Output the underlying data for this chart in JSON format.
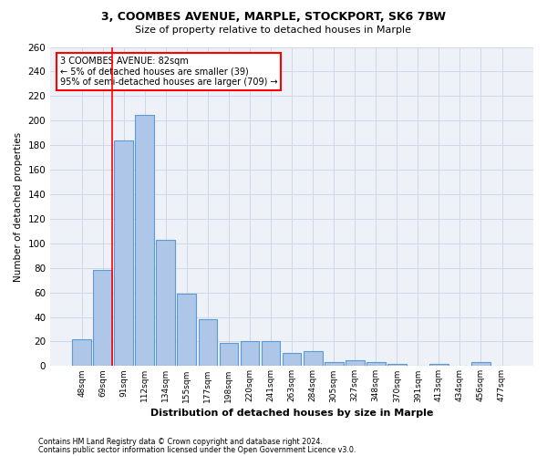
{
  "title1": "3, COOMBES AVENUE, MARPLE, STOCKPORT, SK6 7BW",
  "title2": "Size of property relative to detached houses in Marple",
  "xlabel": "Distribution of detached houses by size in Marple",
  "ylabel": "Number of detached properties",
  "categories": [
    "48sqm",
    "69sqm",
    "91sqm",
    "112sqm",
    "134sqm",
    "155sqm",
    "177sqm",
    "198sqm",
    "220sqm",
    "241sqm",
    "263sqm",
    "284sqm",
    "305sqm",
    "327sqm",
    "348sqm",
    "370sqm",
    "391sqm",
    "413sqm",
    "434sqm",
    "456sqm",
    "477sqm"
  ],
  "values": [
    22,
    78,
    184,
    205,
    103,
    59,
    38,
    19,
    20,
    20,
    11,
    12,
    3,
    5,
    3,
    2,
    0,
    2,
    0,
    3,
    0
  ],
  "bar_color": "#aec6e8",
  "bar_edge_color": "#5b9bd5",
  "grid_color": "#d0d8e8",
  "background_color": "#eef2f8",
  "vline_color": "red",
  "vline_x": 1.45,
  "annotation_text_line1": "3 COOMBES AVENUE: 82sqm",
  "annotation_text_line2": "← 5% of detached houses are smaller (39)",
  "annotation_text_line3": "95% of semi-detached houses are larger (709) →",
  "footer_line1": "Contains HM Land Registry data © Crown copyright and database right 2024.",
  "footer_line2": "Contains public sector information licensed under the Open Government Licence v3.0.",
  "ylim": [
    0,
    260
  ],
  "yticks": [
    0,
    20,
    40,
    60,
    80,
    100,
    120,
    140,
    160,
    180,
    200,
    220,
    240,
    260
  ]
}
